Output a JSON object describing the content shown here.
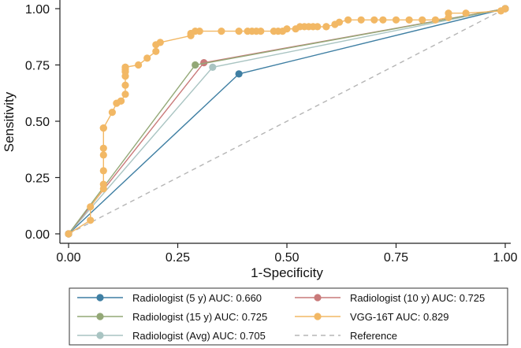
{
  "chart_data": {
    "type": "line",
    "title": "",
    "xlabel": "1-Specificity",
    "ylabel": "Sensitivity",
    "xlim": [
      0,
      1
    ],
    "ylim": [
      0,
      1
    ],
    "x_ticks": [
      "0.00",
      "0.25",
      "0.50",
      "0.75",
      "1.00"
    ],
    "y_ticks": [
      "0.00",
      "0.25",
      "0.50",
      "0.75",
      "1.00"
    ],
    "grid": false,
    "legend_position": "bottom",
    "series": [
      {
        "name": "Radiologist (5 y) AUC: 0.660",
        "color": "#3f7fa3",
        "marker": true,
        "x": [
          0,
          0.39,
          1
        ],
        "y": [
          0,
          0.71,
          1
        ]
      },
      {
        "name": "Radiologist (10 y) AUC: 0.725",
        "color": "#c97a7a",
        "marker": true,
        "x": [
          0,
          0.31,
          1
        ],
        "y": [
          0,
          0.76,
          1
        ]
      },
      {
        "name": "Radiologist (15 y) AUC: 0.725",
        "color": "#93a877",
        "marker": true,
        "x": [
          0,
          0.29,
          1
        ],
        "y": [
          0,
          0.75,
          1
        ]
      },
      {
        "name": "VGG-16T AUC: 0.829",
        "color": "#f2b865",
        "marker": true,
        "x": [
          0,
          0.05,
          0.05,
          0.08,
          0.08,
          0.08,
          0.08,
          0.08,
          0.08,
          0.08,
          0.1,
          0.11,
          0.12,
          0.12,
          0.13,
          0.13,
          0.13,
          0.13,
          0.13,
          0.13,
          0.13,
          0.16,
          0.18,
          0.2,
          0.2,
          0.21,
          0.28,
          0.28,
          0.29,
          0.3,
          0.35,
          0.39,
          0.41,
          0.42,
          0.43,
          0.44,
          0.47,
          0.48,
          0.49,
          0.5,
          0.52,
          0.53,
          0.54,
          0.55,
          0.56,
          0.57,
          0.59,
          0.59,
          0.61,
          0.62,
          0.64,
          0.67,
          0.7,
          0.72,
          0.75,
          0.78,
          0.81,
          0.84,
          0.87,
          0.87,
          0.91,
          0.99,
          1
        ],
        "y": [
          0,
          0.06,
          0.12,
          0.2,
          0.22,
          0.28,
          0.35,
          0.38,
          0.47,
          0.47,
          0.54,
          0.58,
          0.59,
          0.59,
          0.62,
          0.66,
          0.7,
          0.72,
          0.73,
          0.74,
          0.74,
          0.75,
          0.78,
          0.81,
          0.84,
          0.85,
          0.88,
          0.89,
          0.9,
          0.9,
          0.9,
          0.9,
          0.9,
          0.9,
          0.9,
          0.9,
          0.9,
          0.9,
          0.9,
          0.91,
          0.91,
          0.92,
          0.92,
          0.92,
          0.92,
          0.92,
          0.92,
          0.92,
          0.93,
          0.94,
          0.95,
          0.95,
          0.95,
          0.95,
          0.95,
          0.95,
          0.95,
          0.95,
          0.96,
          0.98,
          0.98,
          0.99,
          1
        ]
      },
      {
        "name": "Radiologist (Avg) AUC: 0.705",
        "color": "#a9c4c2",
        "marker": true,
        "x": [
          0,
          0.33,
          1
        ],
        "y": [
          0,
          0.74,
          1
        ]
      },
      {
        "name": "Reference",
        "color": "#b5b5b5",
        "marker": false,
        "dashed": true,
        "x": [
          0,
          1
        ],
        "y": [
          0,
          1
        ]
      }
    ]
  }
}
